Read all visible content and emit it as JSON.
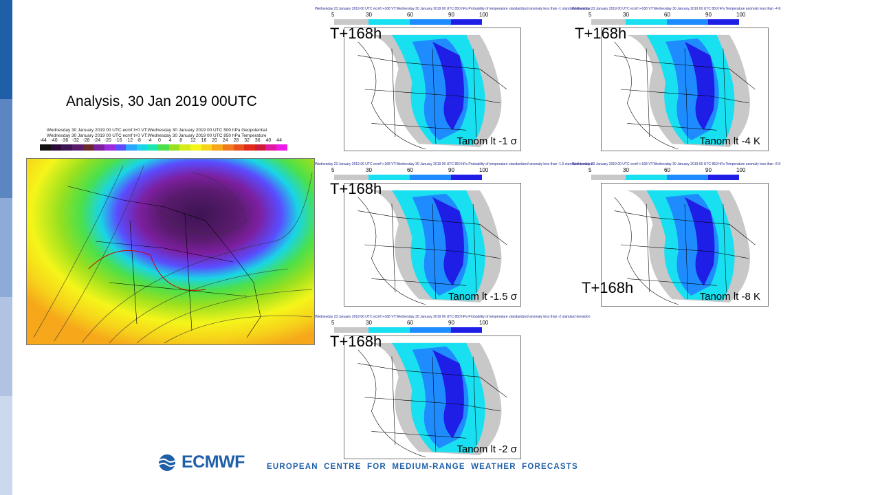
{
  "sidebar_colors": [
    "#1f5fa8",
    "#5b86c2",
    "#8eaad6",
    "#b0c3e3",
    "#cbd8ee"
  ],
  "analysis": {
    "title": "Analysis, 30 Jan 2019 00UTC",
    "header_line1": "Wednesday 30 January 2019 00 UTC ecmf t+0 VT:Wednesday 30 January 2019 00 UTC 500 hPa  Geopotential",
    "header_line2": "Wednesday 30 January 2019 00 UTC ecmf t+0 VT:Wednesday 30 January 2019 00 UTC 850 hPa  Temperature",
    "colorbar_ticks": [
      "-44",
      "-40",
      "-36",
      "-32",
      "-28",
      "-24",
      "-20",
      "-16",
      "-12",
      "-8",
      "-4",
      "0",
      "4",
      "8",
      "12",
      "16",
      "20",
      "24",
      "28",
      "32",
      "36",
      "40",
      "44"
    ],
    "colorbar_colors": [
      "#101010",
      "#2a0a3a",
      "#3c1452",
      "#5a1b6e",
      "#6b2a2a",
      "#7c1fa0",
      "#9c2be0",
      "#5a4cff",
      "#2aa8ff",
      "#19d5e6",
      "#19e6b0",
      "#4be04b",
      "#98e01f",
      "#d6ec1a",
      "#f5f51a",
      "#f6d21a",
      "#f6a81a",
      "#f07a1a",
      "#e8521a",
      "#e0291a",
      "#d01a3a",
      "#e01aa0",
      "#f01ae6"
    ]
  },
  "prob_panels": [
    {
      "forecast": "T+168h",
      "label": "Tanom lt -1 σ",
      "header": "Wednesday 23 January 2019 00 UTC ecmf t+168 VT:Wednesday 30 January 2019 00 UTC 850 hPa Probability of temperature standardized anomaly less than -1 standard deviation"
    },
    {
      "forecast": "T+168h",
      "label": "Tanom lt -4 K",
      "header": "Wednesday 23 January 2019 00 UTC ecmf t+168 VT:Wednesday 30 January 2019 00 UTC 850 hPa Temperature anomaly less than -4 K"
    },
    {
      "forecast": "T+168h",
      "label": "Tanom lt -1.5 σ",
      "header": "Wednesday 23 January 2019 00 UTC ecmf t+168 VT:Wednesday 30 January 2019 00 UTC 850 hPa Probability of temperature standardized anomaly less than -1.5 standard deviation"
    },
    {
      "forecast": "T+168h",
      "label": "Tanom lt -8 K",
      "header": "Wednesday 23 January 2019 00 UTC ecmf t+168 VT:Wednesday 30 January 2019 00 UTC 850 hPa Temperature anomaly less than -8 K"
    },
    {
      "forecast": "T+168h",
      "label": "Tanom lt -2 σ",
      "header": "Wednesday 23 January 2019 00 UTC ecmf t+168 VT:Wednesday 30 January 2019 00 UTC 850 hPa Probability of temperature standardized anomaly less than -2 standard deviation"
    }
  ],
  "prob_scale": {
    "ticks": [
      "5",
      "30",
      "60",
      "90",
      "100"
    ],
    "colors": [
      "#c8c8c8",
      "#19e0f0",
      "#1e8cff",
      "#1e1ee6"
    ]
  },
  "logo_text": "ECMWF",
  "footer": "EUROPEAN CENTRE FOR MEDIUM-RANGE WEATHER FORECASTS"
}
